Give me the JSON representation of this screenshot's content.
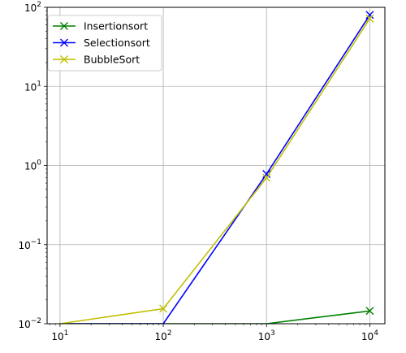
{
  "chart_data": {
    "type": "line",
    "xscale": "log",
    "yscale": "log",
    "xlim": [
      7.5,
      14000
    ],
    "ylim": [
      0.01,
      100
    ],
    "grid": true,
    "legend_position": "top-left",
    "x_ticks": [
      {
        "value": 10,
        "base": "10",
        "exp": "1"
      },
      {
        "value": 100,
        "base": "10",
        "exp": "2"
      },
      {
        "value": 1000,
        "base": "10",
        "exp": "3"
      },
      {
        "value": 10000,
        "base": "10",
        "exp": "4"
      }
    ],
    "y_ticks": [
      {
        "value": 0.01,
        "base": "10",
        "exp": "−2"
      },
      {
        "value": 0.1,
        "base": "10",
        "exp": "−1"
      },
      {
        "value": 1,
        "base": "10",
        "exp": "0"
      },
      {
        "value": 10,
        "base": "10",
        "exp": "1"
      },
      {
        "value": 100,
        "base": "10",
        "exp": "2"
      }
    ],
    "series": [
      {
        "name": "Insertionsort",
        "color": "#008000",
        "marker": "x",
        "x": [
          10,
          100,
          1000,
          10000
        ],
        "y": [
          0,
          0,
          0,
          0.0145
        ]
      },
      {
        "name": "Selectionsort",
        "color": "#0000ff",
        "marker": "x",
        "x": [
          10,
          100,
          1000,
          10000
        ],
        "y": [
          0,
          0,
          0.78,
          80
        ]
      },
      {
        "name": "BubbleSort",
        "color": "#bfbf00",
        "marker": "x",
        "x": [
          10,
          100,
          1000,
          10000
        ],
        "y": [
          0,
          0.0155,
          0.7,
          72
        ]
      }
    ]
  }
}
